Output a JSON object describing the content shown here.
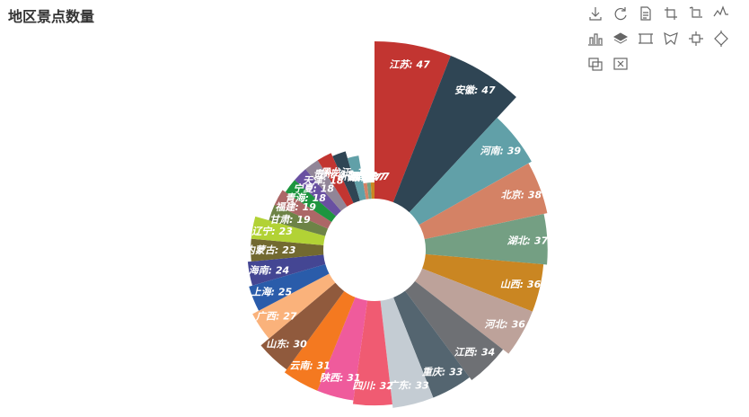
{
  "title": "地区景点数量",
  "toolbox": [
    {
      "name": "save-as-image-icon"
    },
    {
      "name": "restore-icon"
    },
    {
      "name": "data-view-icon"
    },
    {
      "name": "zoom-icon"
    },
    {
      "name": "zoom-reset-icon"
    },
    {
      "name": "line-chart-icon"
    },
    {
      "name": "bar-chart-icon"
    },
    {
      "name": "stack-icon"
    },
    {
      "name": "brush-rect-icon"
    },
    {
      "name": "brush-polygon-icon"
    },
    {
      "name": "brush-line-x-icon"
    },
    {
      "name": "brush-line-y-icon"
    },
    {
      "name": "brush-keep-icon"
    },
    {
      "name": "brush-clear-icon"
    }
  ],
  "chart_data": {
    "type": "pie",
    "rose_type": "radius",
    "label_format": "{name}: {value}",
    "categories": [
      "江苏",
      "安徽",
      "河南",
      "北京",
      "湖北",
      "山西",
      "河北",
      "江西",
      "重庆",
      "广东",
      "四川",
      "陕西",
      "云南",
      "山东",
      "广西",
      "上海",
      "海南",
      "内蒙古",
      "辽宁",
      "甘肃",
      "福建",
      "青海",
      "宁夏",
      "天津",
      "贵州",
      "黑龙江",
      "新疆",
      "湖南",
      "吉林",
      "西藏"
    ],
    "values": [
      47,
      47,
      39,
      38,
      37,
      36,
      36,
      34,
      33,
      33,
      32,
      31,
      31,
      30,
      27,
      25,
      24,
      23,
      23,
      19,
      19,
      18,
      18,
      18,
      18,
      17,
      15,
      7,
      7,
      7
    ],
    "colors": [
      "#c23531",
      "#2f4554",
      "#61a0a8",
      "#d48265",
      "#749f83",
      "#ca8622",
      "#bda29a",
      "#6e7074",
      "#546570",
      "#c4ccd3",
      "#f05b72",
      "#ef5b9c",
      "#f47920",
      "#905a3d",
      "#fab27b",
      "#2a5caa",
      "#444693",
      "#726930",
      "#b2d235",
      "#6d8346",
      "#ac6767",
      "#1d953f",
      "#6950a1",
      "#918597",
      "#c23531",
      "#2f4554",
      "#61a0a8",
      "#d48265",
      "#749f83",
      "#ca8622"
    ]
  }
}
